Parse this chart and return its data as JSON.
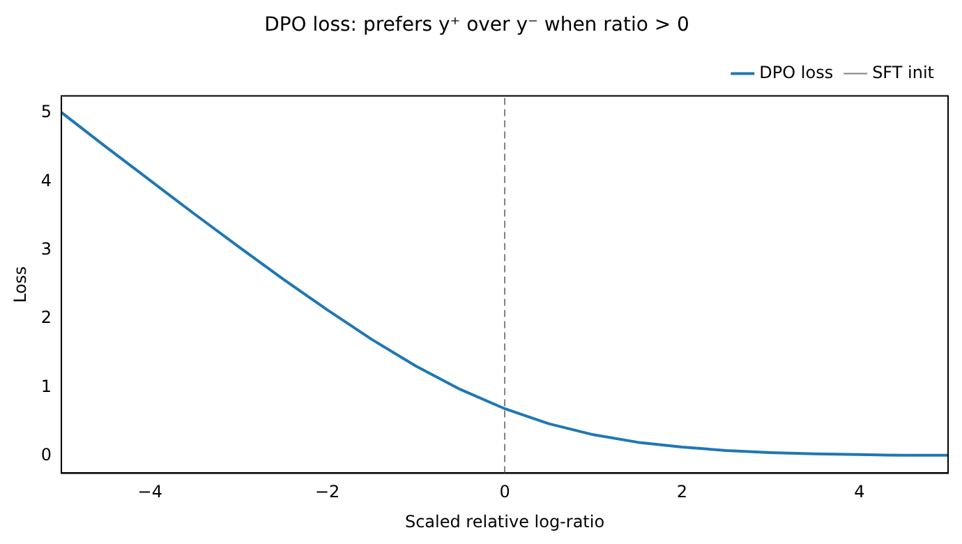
{
  "chart_data": {
    "type": "line",
    "title": "DPO loss: prefers y⁺ over y⁻ when ratio > 0",
    "xlabel": "Scaled relative log-ratio",
    "ylabel": "Loss",
    "x": [
      -5,
      -4.5,
      -4,
      -3.5,
      -3,
      -2.5,
      -2,
      -1.5,
      -1,
      -0.5,
      0,
      0.5,
      1,
      1.5,
      2,
      2.5,
      3,
      3.5,
      4,
      4.5,
      5
    ],
    "series": [
      {
        "name": "DPO loss",
        "color": "#1f77b4",
        "values": [
          5.01,
          4.51,
          4.02,
          3.53,
          3.05,
          2.58,
          2.13,
          1.7,
          1.31,
          0.97,
          0.69,
          0.47,
          0.31,
          0.2,
          0.13,
          0.08,
          0.05,
          0.03,
          0.02,
          0.01,
          0.01
        ]
      }
    ],
    "ref_lines": [
      {
        "axis": "x",
        "value": 0,
        "label": "SFT init",
        "color": "#808080",
        "line_style": "dashed"
      }
    ],
    "xlim": [
      -5,
      5
    ],
    "xticks": [
      -4,
      -2,
      0,
      2,
      4
    ],
    "ylim": [
      -0.25,
      5.25
    ],
    "yticks": [
      0,
      1,
      2,
      3,
      4,
      5
    ],
    "grid": false,
    "legend": "top right",
    "line_style": "solid",
    "marker": "none"
  }
}
